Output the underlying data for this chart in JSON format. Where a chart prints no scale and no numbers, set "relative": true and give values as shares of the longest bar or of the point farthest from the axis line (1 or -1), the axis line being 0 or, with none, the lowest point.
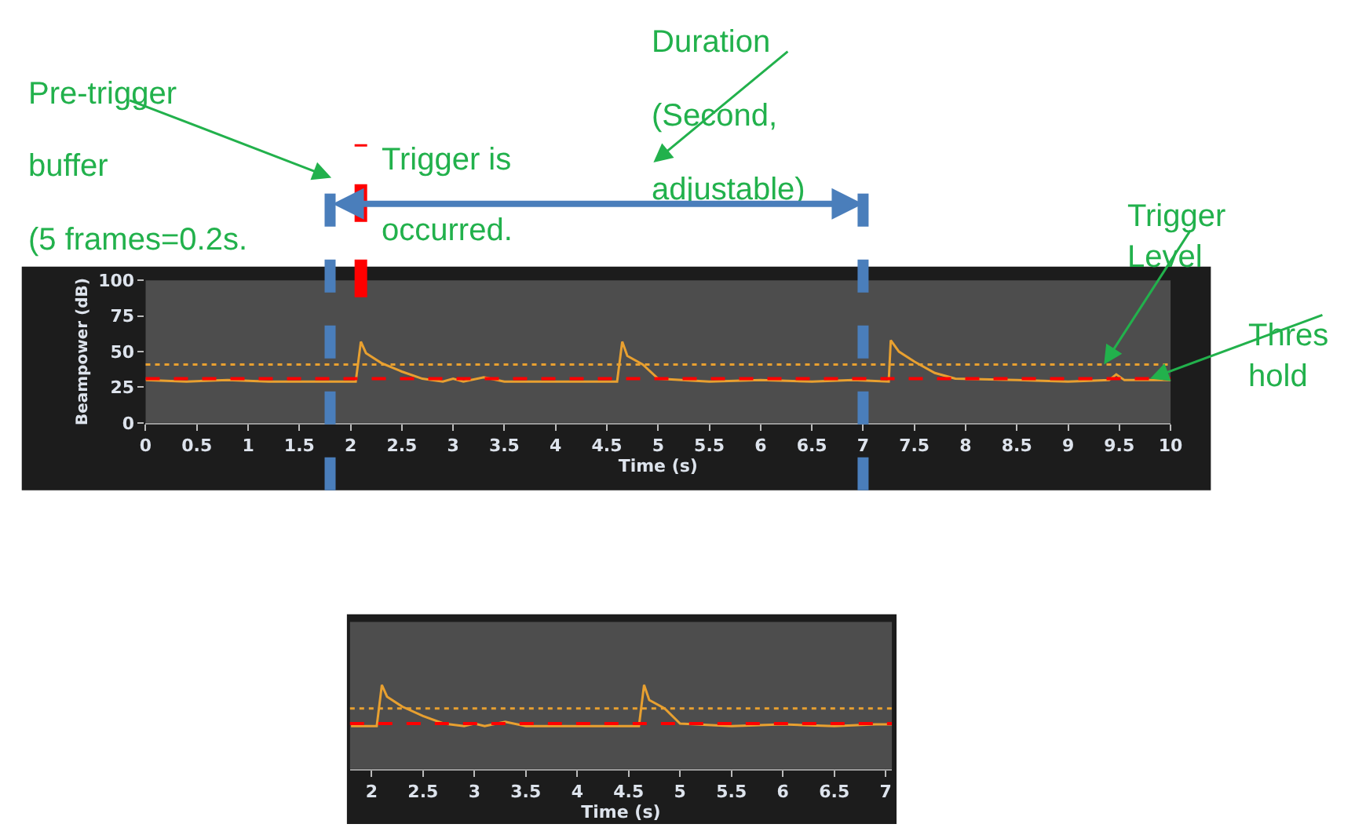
{
  "chart_data": [
    {
      "type": "line",
      "xlabel": "Time (s)",
      "ylabel": "Beampower (dB)",
      "series": [
        {
          "color": "#e8a030",
          "x": [
            0,
            0.4,
            0.8,
            1.2,
            1.6,
            2.05,
            2.1,
            2.15,
            2.3,
            2.5,
            2.7,
            2.9,
            3.0,
            3.1,
            3.3,
            3.5,
            4.0,
            4.6,
            4.65,
            4.7,
            4.85,
            5.0,
            5.5,
            6.0,
            6.5,
            6.9,
            7.25,
            7.27,
            7.35,
            7.5,
            7.7,
            7.9,
            8.5,
            9.0,
            9.4,
            9.47,
            9.55,
            10
          ],
          "values": [
            30,
            29,
            30,
            29,
            29,
            29,
            57,
            49,
            42,
            36,
            31,
            29,
            31,
            29,
            32,
            29,
            29,
            29,
            57,
            47,
            41,
            31,
            29,
            30,
            29,
            30,
            29,
            58,
            50,
            43,
            35,
            31,
            30,
            29,
            30,
            34,
            30,
            30
          ]
        }
      ],
      "xlim": [
        0,
        10
      ],
      "ylim": [
        0,
        100
      ],
      "xticks": [
        0,
        0.5,
        1,
        1.5,
        2,
        2.5,
        3,
        3.5,
        4,
        4.5,
        5,
        5.5,
        6,
        6.5,
        7,
        7.5,
        8,
        8.5,
        9,
        9.5,
        10
      ],
      "yticks": [
        0,
        25,
        50,
        75,
        100
      ],
      "grid": false,
      "marker": "none",
      "line_style": "solid",
      "ref_lines": [
        {
          "axis": "y",
          "value": 41,
          "color": "#e8a030",
          "line_style": "dotted"
        },
        {
          "axis": "y",
          "value": 31,
          "color": "#ff0000",
          "line_style": "dashed"
        },
        {
          "axis": "x",
          "value": 1.8,
          "color": "#4a7ebb",
          "line_style": "dashed"
        },
        {
          "axis": "x",
          "value": 2.1,
          "color": "#ff0000",
          "line_style": "dashed"
        },
        {
          "axis": "x",
          "value": 7,
          "color": "#4a7ebb",
          "line_style": "dashed"
        }
      ],
      "annotations": [
        "Pre-trigger\nbuffer\n(5 frames=0.2s.",
        "Trigger is\noccurred.",
        "Duration\n(Second,\nadjustable)",
        {
          "text": "Trigger\nLevel",
          "x": 9.35,
          "y": 41
        },
        {
          "text": "Thres\nhold",
          "x": 9.8,
          "y": 31
        }
      ]
    },
    {
      "type": "line",
      "xlabel": "Time (s)",
      "series": [
        {
          "color": "#e8a030",
          "x": [
            1.8,
            2.05,
            2.1,
            2.15,
            2.3,
            2.5,
            2.7,
            2.9,
            3.0,
            3.1,
            3.3,
            3.5,
            4.0,
            4.6,
            4.65,
            4.7,
            4.85,
            5.0,
            5.5,
            6.0,
            6.5,
            6.9,
            7.06
          ],
          "values": [
            0.51,
            0.51,
            1,
            0.86,
            0.74,
            0.63,
            0.54,
            0.51,
            0.54,
            0.51,
            0.56,
            0.51,
            0.51,
            0.51,
            1,
            0.82,
            0.72,
            0.54,
            0.51,
            0.53,
            0.51,
            0.53,
            0.53
          ]
        }
      ],
      "relative": true,
      "xlim": [
        1.79,
        7.06
      ],
      "xticks": [
        2,
        2.5,
        3,
        3.5,
        4,
        4.5,
        5,
        5.5,
        6,
        6.5,
        7
      ],
      "grid": false,
      "marker": "none",
      "line_style": "solid",
      "ref_lines": [
        {
          "axis": "y",
          "value": 0.72,
          "color": "#e8a030",
          "line_style": "dotted"
        },
        {
          "axis": "y",
          "value": 0.54,
          "color": "#ff0000",
          "line_style": "dashed"
        }
      ]
    }
  ]
}
